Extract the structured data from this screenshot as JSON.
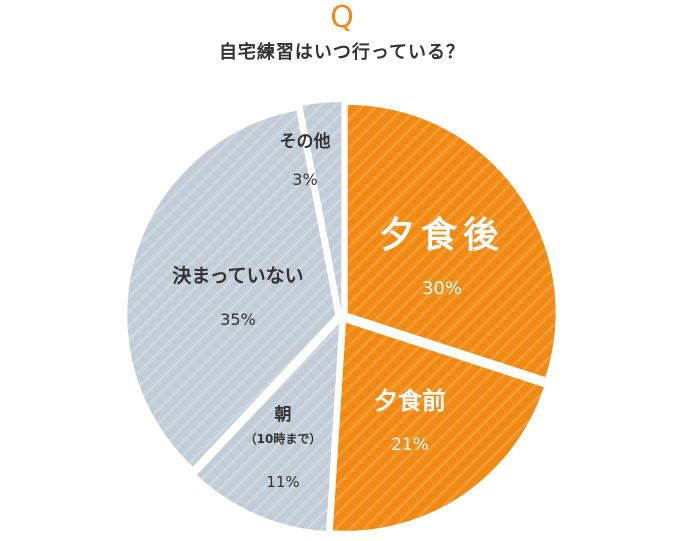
{
  "header": {
    "q_mark": "Q",
    "question": "自宅練習はいつ行っている？"
  },
  "chart_data": {
    "type": "pie",
    "title": "自宅練習はいつ行っている？",
    "start": "top (12 o'clock), clockwise",
    "slices": [
      {
        "label": "夕食後",
        "sublabel": "",
        "value": 30,
        "value_text": "30%",
        "color": "#f08a12",
        "text_color": "#ffffff"
      },
      {
        "label": "夕食前",
        "sublabel": "",
        "value": 21,
        "value_text": "21%",
        "color": "#f08a12",
        "text_color": "#ffffff"
      },
      {
        "label": "朝",
        "sublabel": "（10時まで）",
        "value": 11,
        "value_text": "11%",
        "color": "#c2ccd6",
        "text_color": "#333333"
      },
      {
        "label": "決まっていない",
        "sublabel": "",
        "value": 35,
        "value_text": "35%",
        "color": "#c2ccd6",
        "text_color": "#333333"
      },
      {
        "label": "その他",
        "sublabel": "",
        "value": 3,
        "value_text": "3%",
        "color": "#c2ccd6",
        "text_color": "#333333"
      }
    ]
  }
}
